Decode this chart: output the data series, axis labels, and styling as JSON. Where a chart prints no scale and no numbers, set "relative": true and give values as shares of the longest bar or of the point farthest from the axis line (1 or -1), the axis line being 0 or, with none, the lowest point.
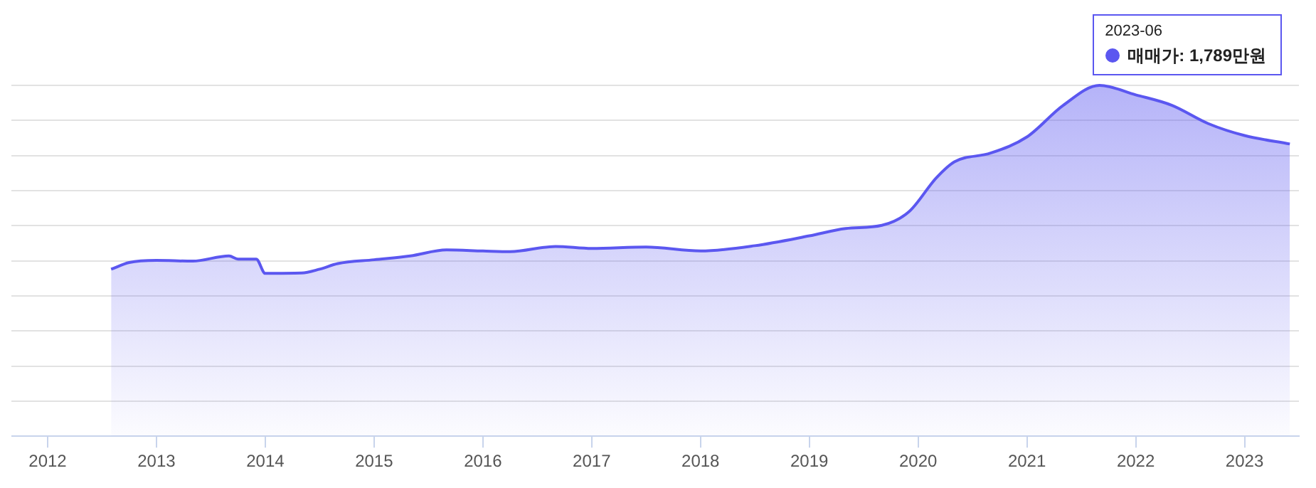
{
  "chart_data": {
    "type": "area",
    "relative": true,
    "x": [
      "2012-08",
      "2012-10",
      "2013-01",
      "2013-05",
      "2013-09",
      "2013-10",
      "2013-12",
      "2014-01",
      "2014-05",
      "2014-07",
      "2014-09",
      "2015-01",
      "2015-05",
      "2015-09",
      "2016-01",
      "2016-04",
      "2016-09",
      "2017-01",
      "2017-07",
      "2018-01",
      "2018-07",
      "2019-01",
      "2019-05",
      "2019-09",
      "2019-12",
      "2020-03",
      "2020-05",
      "2020-09",
      "2021-01",
      "2021-05",
      "2021-09",
      "2022-01",
      "2022-05",
      "2022-09",
      "2023-01",
      "2023-06"
    ],
    "series": [
      {
        "color": "#5b57f0",
        "values": [
          0.476,
          0.495,
          0.501,
          0.499,
          0.514,
          0.505,
          0.505,
          0.464,
          0.465,
          0.476,
          0.492,
          0.503,
          0.514,
          0.531,
          0.528,
          0.526,
          0.541,
          0.535,
          0.539,
          0.528,
          0.543,
          0.571,
          0.592,
          0.601,
          0.64,
          0.736,
          0.782,
          0.807,
          0.853,
          0.943,
          1.0,
          0.973,
          0.943,
          0.891,
          0.857,
          0.833
        ]
      }
    ],
    "xlim": [
      "2011-09",
      "2023-07"
    ],
    "xticks": [
      "2012",
      "2013",
      "2014",
      "2015",
      "2016",
      "2017",
      "2018",
      "2019",
      "2020",
      "2021",
      "2022",
      "2023"
    ],
    "annotations": [
      "2023-06",
      "매매가: 1,789만원"
    ],
    "grid": "y",
    "legend": false,
    "tick_labels": "x",
    "marker": "none",
    "line_style": "solid"
  }
}
